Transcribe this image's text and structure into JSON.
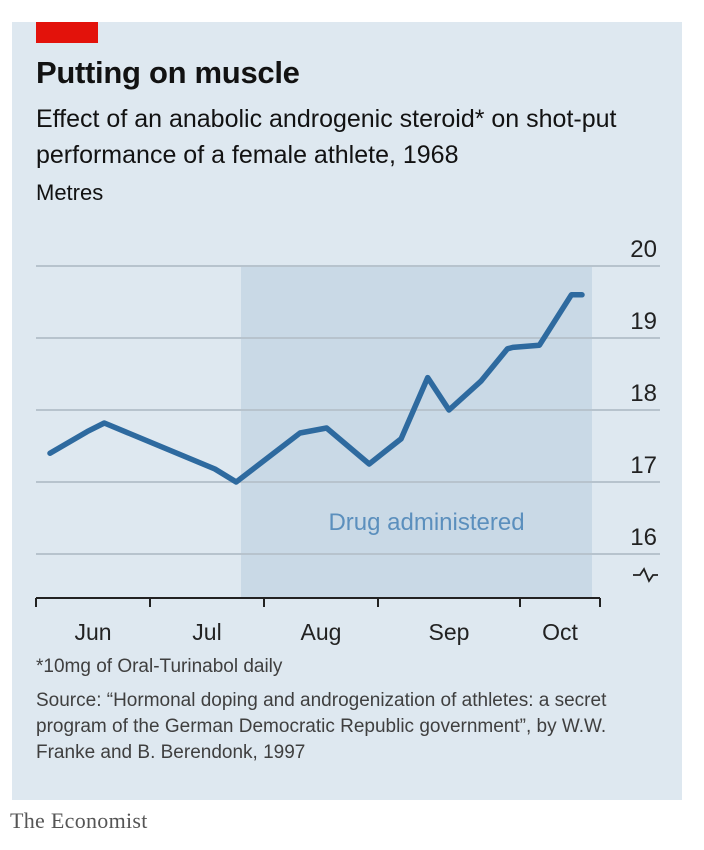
{
  "title": "Putting on muscle",
  "subtitle": "Effect of an anabolic androgenic steroid* on shot-put performance of a female athlete, 1968",
  "unit_label": "Metres",
  "footnote": "*10mg of Oral-Turinabol daily",
  "source": "Source: “Hormonal doping and androgenization of athletes: a secret program of the German Democratic Republic government”, by W.W. Franke and B. Berendonk, 1997",
  "brand": "The Economist",
  "colors": {
    "accent_red": "#e3120b",
    "line": "#2e6a9f",
    "shade": "#c9d9e6",
    "panel": "#dee8f0",
    "grid": "#b7c3cd",
    "annotation": "#5b8fbd"
  },
  "chart_data": {
    "type": "line",
    "title": "Putting on muscle",
    "ylabel": "Metres",
    "ylim": [
      15.7,
      20
    ],
    "yticks": [
      16,
      17,
      18,
      19,
      20
    ],
    "axis_break": true,
    "x_months": [
      "Jun",
      "Jul",
      "Aug",
      "Sep",
      "Oct"
    ],
    "xlim": [
      0,
      5
    ],
    "grid": true,
    "series": [
      {
        "x": [
          0.0,
          0.35,
          0.51,
          1.55,
          1.75,
          2.35,
          2.6,
          3.0,
          3.3,
          3.55,
          3.75,
          4.05,
          4.3,
          4.35,
          4.6,
          4.9,
          5.0
        ],
        "values": [
          17.4,
          17.7,
          17.82,
          17.18,
          17.0,
          17.68,
          17.75,
          17.25,
          17.6,
          18.45,
          18.0,
          18.4,
          18.85,
          18.87,
          18.9,
          19.6,
          19.6
        ]
      }
    ],
    "shaded_region": {
      "x_start": 1.95,
      "x_end": 5.0,
      "label": "Drug administered"
    }
  }
}
